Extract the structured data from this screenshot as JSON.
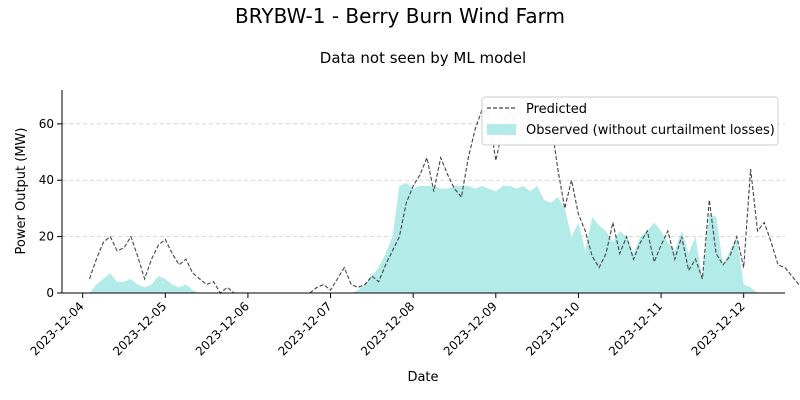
{
  "chart_data": {
    "type": "area",
    "title": "BRYBW-1 - Berry Burn Wind Farm",
    "subtitle": "Data not seen by ML model",
    "xlabel": "Date",
    "ylabel": "Power Output (MW)",
    "xlim": [
      "2023-12-03T18:00",
      "2023-12-12T12:00"
    ],
    "ylim": [
      0,
      72
    ],
    "yticks": [
      0,
      20,
      40,
      60
    ],
    "xticks": [
      "2023-12-04",
      "2023-12-05",
      "2023-12-06",
      "2023-12-07",
      "2023-12-08",
      "2023-12-09",
      "2023-12-10",
      "2023-12-11",
      "2023-12-12"
    ],
    "grid": "horizontal dashed",
    "legend_position": "top-right",
    "colors": {
      "observed": "#b2ebe8",
      "predicted": "#444444",
      "grid": "#cccccc"
    },
    "series": [
      {
        "name": "Predicted",
        "style": "dashed-line",
        "points": [
          [
            "2023-12-04T02:00",
            5
          ],
          [
            "2023-12-04T04:00",
            12
          ],
          [
            "2023-12-04T06:00",
            18
          ],
          [
            "2023-12-04T08:00",
            20
          ],
          [
            "2023-12-04T10:00",
            15
          ],
          [
            "2023-12-04T12:00",
            16
          ],
          [
            "2023-12-04T14:00",
            20
          ],
          [
            "2023-12-04T16:00",
            13
          ],
          [
            "2023-12-04T18:00",
            5
          ],
          [
            "2023-12-04T20:00",
            12
          ],
          [
            "2023-12-04T22:00",
            17
          ],
          [
            "2023-12-05T00:00",
            19
          ],
          [
            "2023-12-05T02:00",
            14
          ],
          [
            "2023-12-05T04:00",
            10
          ],
          [
            "2023-12-05T06:00",
            12
          ],
          [
            "2023-12-05T08:00",
            7
          ],
          [
            "2023-12-05T10:00",
            5
          ],
          [
            "2023-12-05T12:00",
            3
          ],
          [
            "2023-12-05T14:00",
            4
          ],
          [
            "2023-12-05T16:00",
            0
          ],
          [
            "2023-12-05T18:00",
            2
          ],
          [
            "2023-12-05T20:00",
            0
          ],
          [
            "2023-12-06T18:00",
            0
          ],
          [
            "2023-12-06T20:00",
            2
          ],
          [
            "2023-12-06T22:00",
            3
          ],
          [
            "2023-12-07T00:00",
            1
          ],
          [
            "2023-12-07T02:00",
            5
          ],
          [
            "2023-12-07T04:00",
            9
          ],
          [
            "2023-12-07T06:00",
            3
          ],
          [
            "2023-12-07T08:00",
            2
          ],
          [
            "2023-12-07T10:00",
            3
          ],
          [
            "2023-12-07T12:00",
            6
          ],
          [
            "2023-12-07T14:00",
            4
          ],
          [
            "2023-12-07T16:00",
            10
          ],
          [
            "2023-12-07T18:00",
            15
          ],
          [
            "2023-12-07T20:00",
            20
          ],
          [
            "2023-12-07T22:00",
            32
          ],
          [
            "2023-12-08T00:00",
            38
          ],
          [
            "2023-12-08T02:00",
            42
          ],
          [
            "2023-12-08T04:00",
            48
          ],
          [
            "2023-12-08T06:00",
            36
          ],
          [
            "2023-12-08T08:00",
            48
          ],
          [
            "2023-12-08T10:00",
            42
          ],
          [
            "2023-12-08T12:00",
            37
          ],
          [
            "2023-12-08T14:00",
            34
          ],
          [
            "2023-12-08T16:00",
            48
          ],
          [
            "2023-12-08T18:00",
            58
          ],
          [
            "2023-12-08T20:00",
            65
          ],
          [
            "2023-12-08T22:00",
            63
          ],
          [
            "2023-12-09T00:00",
            47
          ],
          [
            "2023-12-09T02:00",
            58
          ],
          [
            "2023-12-09T04:00",
            65
          ],
          [
            "2023-12-09T06:00",
            60
          ],
          [
            "2023-12-09T08:00",
            58
          ],
          [
            "2023-12-09T10:00",
            62
          ],
          [
            "2023-12-09T12:00",
            55
          ],
          [
            "2023-12-09T14:00",
            62
          ],
          [
            "2023-12-09T16:00",
            61
          ],
          [
            "2023-12-09T18:00",
            44
          ],
          [
            "2023-12-09T20:00",
            30
          ],
          [
            "2023-12-09T22:00",
            40
          ],
          [
            "2023-12-10T00:00",
            28
          ],
          [
            "2023-12-10T02:00",
            22
          ],
          [
            "2023-12-10T04:00",
            13
          ],
          [
            "2023-12-10T06:00",
            9
          ],
          [
            "2023-12-10T08:00",
            14
          ],
          [
            "2023-12-10T10:00",
            25
          ],
          [
            "2023-12-10T12:00",
            14
          ],
          [
            "2023-12-10T14:00",
            20
          ],
          [
            "2023-12-10T16:00",
            12
          ],
          [
            "2023-12-10T18:00",
            18
          ],
          [
            "2023-12-10T20:00",
            22
          ],
          [
            "2023-12-10T22:00",
            11
          ],
          [
            "2023-12-11T00:00",
            17
          ],
          [
            "2023-12-11T02:00",
            22
          ],
          [
            "2023-12-11T04:00",
            12
          ],
          [
            "2023-12-11T06:00",
            20
          ],
          [
            "2023-12-11T08:00",
            8
          ],
          [
            "2023-12-11T10:00",
            12
          ],
          [
            "2023-12-11T12:00",
            5
          ],
          [
            "2023-12-11T14:00",
            33
          ],
          [
            "2023-12-11T16:00",
            14
          ],
          [
            "2023-12-11T18:00",
            10
          ],
          [
            "2023-12-11T20:00",
            13
          ],
          [
            "2023-12-11T22:00",
            20
          ],
          [
            "2023-12-12T00:00",
            9
          ],
          [
            "2023-12-12T02:00",
            44
          ],
          [
            "2023-12-12T04:00",
            22
          ],
          [
            "2023-12-12T06:00",
            25
          ],
          [
            "2023-12-12T08:00",
            18
          ],
          [
            "2023-12-12T10:00",
            10
          ],
          [
            "2023-12-12T12:00",
            9
          ],
          [
            "2023-12-12T14:00",
            6
          ],
          [
            "2023-12-12T16:00",
            3
          ],
          [
            "2023-12-12T18:00",
            1
          ],
          [
            "2023-12-12T20:00",
            3
          ],
          [
            "2023-12-12T22:00",
            2
          ]
        ]
      },
      {
        "name": "Observed (without curtailment losses)",
        "style": "filled-area",
        "points": [
          [
            "2023-12-04T02:00",
            0
          ],
          [
            "2023-12-04T04:00",
            3
          ],
          [
            "2023-12-04T06:00",
            5
          ],
          [
            "2023-12-04T08:00",
            7
          ],
          [
            "2023-12-04T10:00",
            4
          ],
          [
            "2023-12-04T12:00",
            4
          ],
          [
            "2023-12-04T14:00",
            5
          ],
          [
            "2023-12-04T16:00",
            3
          ],
          [
            "2023-12-04T18:00",
            2
          ],
          [
            "2023-12-04T20:00",
            3
          ],
          [
            "2023-12-04T22:00",
            6
          ],
          [
            "2023-12-05T00:00",
            5
          ],
          [
            "2023-12-05T02:00",
            3
          ],
          [
            "2023-12-05T04:00",
            2
          ],
          [
            "2023-12-05T06:00",
            3
          ],
          [
            "2023-12-05T08:00",
            1
          ],
          [
            "2023-12-05T10:00",
            0
          ],
          [
            "2023-12-07T06:00",
            0
          ],
          [
            "2023-12-07T08:00",
            1
          ],
          [
            "2023-12-07T10:00",
            3
          ],
          [
            "2023-12-07T12:00",
            6
          ],
          [
            "2023-12-07T14:00",
            9
          ],
          [
            "2023-12-07T16:00",
            14
          ],
          [
            "2023-12-07T18:00",
            20
          ],
          [
            "2023-12-07T20:00",
            38
          ],
          [
            "2023-12-07T22:00",
            39
          ],
          [
            "2023-12-08T00:00",
            37
          ],
          [
            "2023-12-08T02:00",
            38
          ],
          [
            "2023-12-08T04:00",
            38
          ],
          [
            "2023-12-08T06:00",
            38
          ],
          [
            "2023-12-08T08:00",
            37
          ],
          [
            "2023-12-08T10:00",
            37
          ],
          [
            "2023-12-08T12:00",
            38
          ],
          [
            "2023-12-08T14:00",
            38
          ],
          [
            "2023-12-08T16:00",
            38
          ],
          [
            "2023-12-08T18:00",
            37
          ],
          [
            "2023-12-08T20:00",
            38
          ],
          [
            "2023-12-08T22:00",
            37
          ],
          [
            "2023-12-09T00:00",
            36
          ],
          [
            "2023-12-09T02:00",
            38
          ],
          [
            "2023-12-09T04:00",
            38
          ],
          [
            "2023-12-09T06:00",
            37
          ],
          [
            "2023-12-09T08:00",
            38
          ],
          [
            "2023-12-09T10:00",
            36
          ],
          [
            "2023-12-09T12:00",
            38
          ],
          [
            "2023-12-09T14:00",
            33
          ],
          [
            "2023-12-09T16:00",
            32
          ],
          [
            "2023-12-09T18:00",
            34
          ],
          [
            "2023-12-09T20:00",
            30
          ],
          [
            "2023-12-09T22:00",
            20
          ],
          [
            "2023-12-10T00:00",
            25
          ],
          [
            "2023-12-10T02:00",
            15
          ],
          [
            "2023-12-10T04:00",
            27
          ],
          [
            "2023-12-10T06:00",
            24
          ],
          [
            "2023-12-10T08:00",
            22
          ],
          [
            "2023-12-10T10:00",
            18
          ],
          [
            "2023-12-10T12:00",
            22
          ],
          [
            "2023-12-10T14:00",
            20
          ],
          [
            "2023-12-10T16:00",
            14
          ],
          [
            "2023-12-10T18:00",
            20
          ],
          [
            "2023-12-10T20:00",
            22
          ],
          [
            "2023-12-10T22:00",
            25
          ],
          [
            "2023-12-11T00:00",
            22
          ],
          [
            "2023-12-11T02:00",
            18
          ],
          [
            "2023-12-11T04:00",
            15
          ],
          [
            "2023-12-11T06:00",
            22
          ],
          [
            "2023-12-11T08:00",
            14
          ],
          [
            "2023-12-11T10:00",
            20
          ],
          [
            "2023-12-11T12:00",
            5
          ],
          [
            "2023-12-11T14:00",
            28
          ],
          [
            "2023-12-11T16:00",
            27
          ],
          [
            "2023-12-11T18:00",
            10
          ],
          [
            "2023-12-11T20:00",
            15
          ],
          [
            "2023-12-11T22:00",
            20
          ],
          [
            "2023-12-12T00:00",
            3
          ],
          [
            "2023-12-12T02:00",
            2
          ],
          [
            "2023-12-12T04:00",
            0
          ]
        ]
      }
    ],
    "observed_gap_ranges": [
      [
        "2023-12-05T10:00",
        "2023-12-07T06:00"
      ]
    ]
  }
}
